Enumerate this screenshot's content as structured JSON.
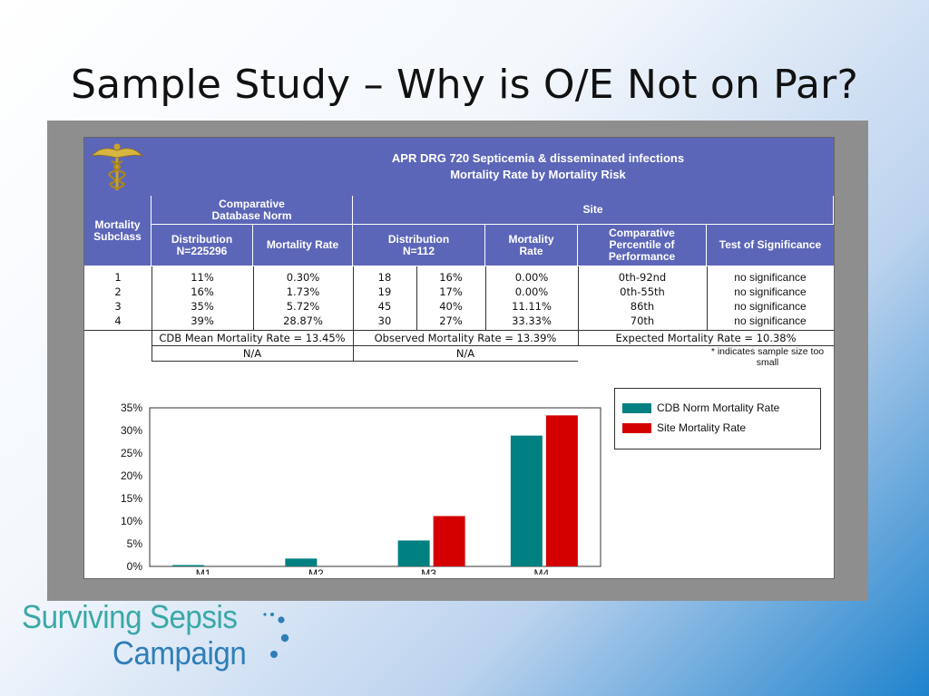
{
  "slide": {
    "title": "Sample Study – Why is O/E Not on Par?"
  },
  "header": {
    "line1": "APR DRG 720 Septicemia & disseminated infections",
    "line2": "Mortality Rate by Mortality Risk"
  },
  "table": {
    "col_mortality_subclass": "Mortality Subclass",
    "group_cdb": "Comparative Database Norm",
    "group_site": "Site",
    "col_cdb_distribution": "Distribution N=225296",
    "col_cdb_mortality_rate": "Mortality Rate",
    "col_site_distribution": "Distribution N=112",
    "col_site_mortality_rate": "Mortality Rate",
    "col_percentile": "Comparative Percentile of Performance",
    "col_significance": "Test of Significance",
    "rows": [
      {
        "subclass": "1",
        "cdb_dist": "11%",
        "cdb_rate": "0.30%",
        "site_n": "18",
        "site_pct": "16%",
        "site_rate": "0.00%",
        "percentile": "0th-92nd",
        "significance": "no significance"
      },
      {
        "subclass": "2",
        "cdb_dist": "16%",
        "cdb_rate": "1.73%",
        "site_n": "19",
        "site_pct": "17%",
        "site_rate": "0.00%",
        "percentile": "0th-55th",
        "significance": "no significance"
      },
      {
        "subclass": "3",
        "cdb_dist": "35%",
        "cdb_rate": "5.72%",
        "site_n": "45",
        "site_pct": "40%",
        "site_rate": "11.11%",
        "percentile": "86th",
        "significance": "no significance"
      },
      {
        "subclass": "4",
        "cdb_dist": "39%",
        "cdb_rate": "28.87%",
        "site_n": "30",
        "site_pct": "27%",
        "site_rate": "33.33%",
        "percentile": "70th",
        "significance": "no significance"
      }
    ],
    "cdb_mean": "CDB Mean Mortality Rate = 13.45%",
    "observed": "Observed Mortality Rate = 13.39%",
    "expected": "Expected Mortality Rate = 10.38%",
    "cdb_na": "N/A",
    "site_na": "N/A",
    "note": "* indicates sample size too small"
  },
  "chart_data": {
    "type": "bar",
    "categories": [
      "M1",
      "M2",
      "M3",
      "M4"
    ],
    "series": [
      {
        "name": "CDB Norm Mortality Rate",
        "values": [
          0.3,
          1.73,
          5.72,
          28.87
        ],
        "color": "#008080"
      },
      {
        "name": "Site Mortality Rate",
        "values": [
          0.0,
          0.0,
          11.11,
          33.33
        ],
        "color": "#d40000"
      }
    ],
    "yticks": [
      "0%",
      "5%",
      "10%",
      "15%",
      "20%",
      "25%",
      "30%",
      "35%"
    ],
    "ylim": [
      0,
      35
    ],
    "legend_position": "right",
    "grid": false
  },
  "branding": {
    "line1": "Surviving Sepsis",
    "line2": "Campaign"
  }
}
